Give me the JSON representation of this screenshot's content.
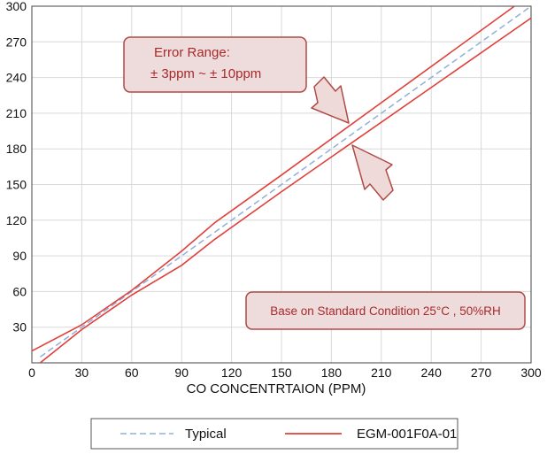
{
  "chart_data": {
    "type": "line",
    "title": "",
    "xlabel": "CO CONCENTRTAION (PPM)",
    "ylabel": "",
    "xlim": [
      0,
      300
    ],
    "ylim": [
      0,
      300
    ],
    "x_ticks": [
      0,
      30,
      60,
      90,
      120,
      150,
      180,
      210,
      240,
      270,
      300
    ],
    "y_ticks": [
      30,
      60,
      90,
      120,
      150,
      180,
      210,
      240,
      270,
      300
    ],
    "grid": true,
    "legend_position": "bottom",
    "series": [
      {
        "name": "Typical",
        "style": "dashed",
        "color": "#8fb0d8",
        "points": [
          [
            5,
            5
          ],
          [
            300,
            300
          ]
        ]
      },
      {
        "name": "EGM-001F0A-01",
        "style": "solid",
        "color": "#e0403a",
        "points": [
          [
            0,
            10
          ],
          [
            30,
            32
          ],
          [
            60,
            61
          ],
          [
            90,
            94
          ],
          [
            110,
            118
          ],
          [
            150,
            158
          ],
          [
            290,
            300
          ]
        ]
      },
      {
        "name": "EGM-001F0A-01",
        "style": "solid",
        "color": "#e0403a",
        "points": [
          [
            5,
            0
          ],
          [
            30,
            28
          ],
          [
            60,
            57
          ],
          [
            90,
            82
          ],
          [
            110,
            104
          ],
          [
            150,
            144
          ],
          [
            300,
            290
          ]
        ]
      }
    ],
    "annotations": [
      {
        "lines": [
          "Error Range:",
          "± 3ppm ~ ± 10ppm"
        ]
      },
      {
        "lines": [
          "Base on Standard Condition 25°C , 50%RH"
        ]
      }
    ]
  }
}
